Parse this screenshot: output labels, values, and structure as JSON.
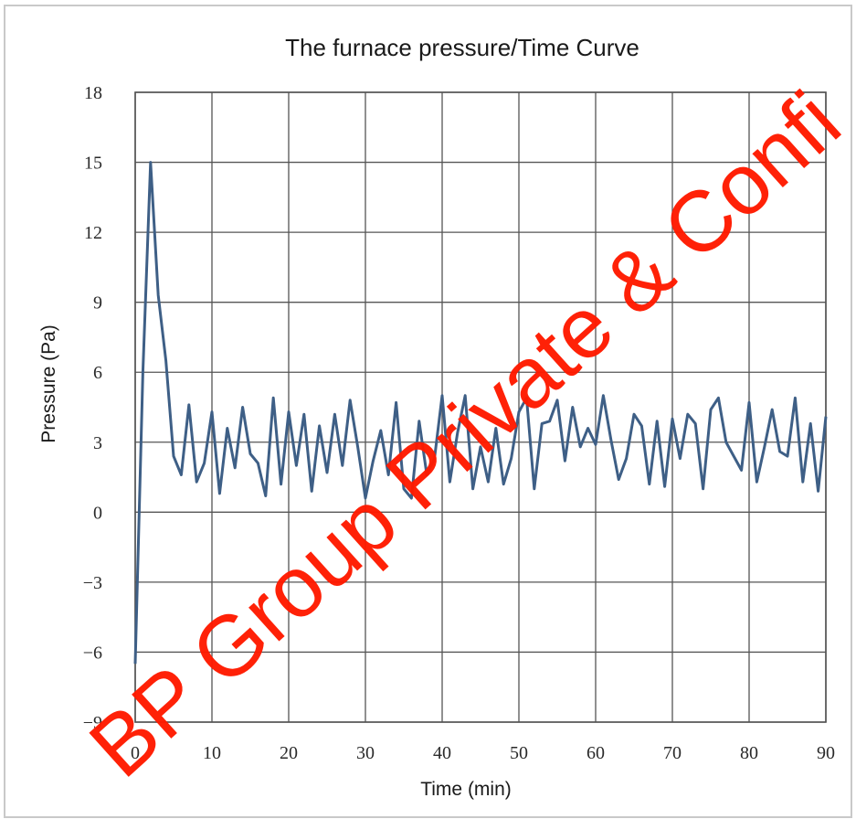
{
  "chart_data": {
    "type": "line",
    "title": "The furnace pressure/Time Curve",
    "xlabel": "Time (min)",
    "ylabel": "Pressure (Pa)",
    "xlim": [
      0,
      90
    ],
    "ylim": [
      -9,
      18
    ],
    "xticks": [
      0,
      10,
      20,
      30,
      40,
      50,
      60,
      70,
      80,
      90
    ],
    "yticks": [
      -9,
      -6,
      -3,
      0,
      3,
      6,
      9,
      12,
      15,
      18
    ],
    "xtick_labels": [
      "0",
      "10",
      "20",
      "30",
      "40",
      "50",
      "60",
      "70",
      "80",
      "90"
    ],
    "ytick_labels": [
      "−9",
      "−6",
      "−3",
      "0",
      "3",
      "6",
      "9",
      "12",
      "15",
      "18"
    ],
    "grid": true,
    "line_color": "#3e5f86",
    "series": [
      {
        "x": [
          0,
          1,
          2,
          3,
          4,
          5,
          6,
          7,
          8,
          9,
          10,
          11,
          12,
          13,
          14,
          15,
          16,
          17,
          18,
          19,
          20,
          21,
          22,
          23,
          24,
          25,
          26,
          27,
          28,
          29,
          30,
          31,
          32,
          33,
          34,
          35,
          36,
          37,
          38,
          39,
          40,
          41,
          42,
          43,
          44,
          45,
          46,
          47,
          48,
          49,
          50,
          51,
          52,
          53,
          54,
          55,
          56,
          57,
          58,
          59,
          60,
          61,
          62,
          63,
          64,
          65,
          66,
          67,
          68,
          69,
          70,
          71,
          72,
          73,
          74,
          75,
          76,
          77,
          78,
          79,
          80,
          81,
          82,
          83,
          84,
          85,
          86,
          87,
          88,
          89,
          90
        ],
        "values": [
          -6.5,
          6.0,
          15.0,
          9.3,
          6.5,
          2.4,
          1.6,
          4.6,
          1.3,
          2.1,
          4.3,
          0.8,
          3.6,
          1.9,
          4.5,
          2.5,
          2.1,
          0.7,
          4.9,
          1.2,
          4.3,
          2.0,
          4.2,
          0.9,
          3.7,
          1.7,
          4.2,
          2.0,
          4.8,
          2.8,
          0.6,
          2.2,
          3.5,
          1.6,
          4.7,
          1.0,
          0.6,
          3.9,
          1.6,
          2.3,
          5.0,
          1.3,
          3.4,
          5.0,
          1.0,
          2.8,
          1.3,
          3.6,
          1.2,
          2.3,
          4.3,
          4.9,
          1.0,
          3.8,
          3.9,
          4.8,
          2.2,
          4.5,
          2.8,
          3.6,
          2.9,
          5.0,
          3.1,
          1.4,
          2.3,
          4.2,
          3.7,
          1.2,
          3.9,
          1.1,
          4.0,
          2.3,
          4.2,
          3.8,
          1.0,
          4.4,
          4.9,
          3.0,
          2.4,
          1.8,
          4.7,
          1.3,
          2.8,
          4.4,
          2.6,
          2.4,
          4.9,
          1.3,
          3.8,
          0.9,
          4.1
        ]
      }
    ]
  },
  "watermark": {
    "text": "BP Group Private & Confi",
    "color": "#ff1a00"
  }
}
